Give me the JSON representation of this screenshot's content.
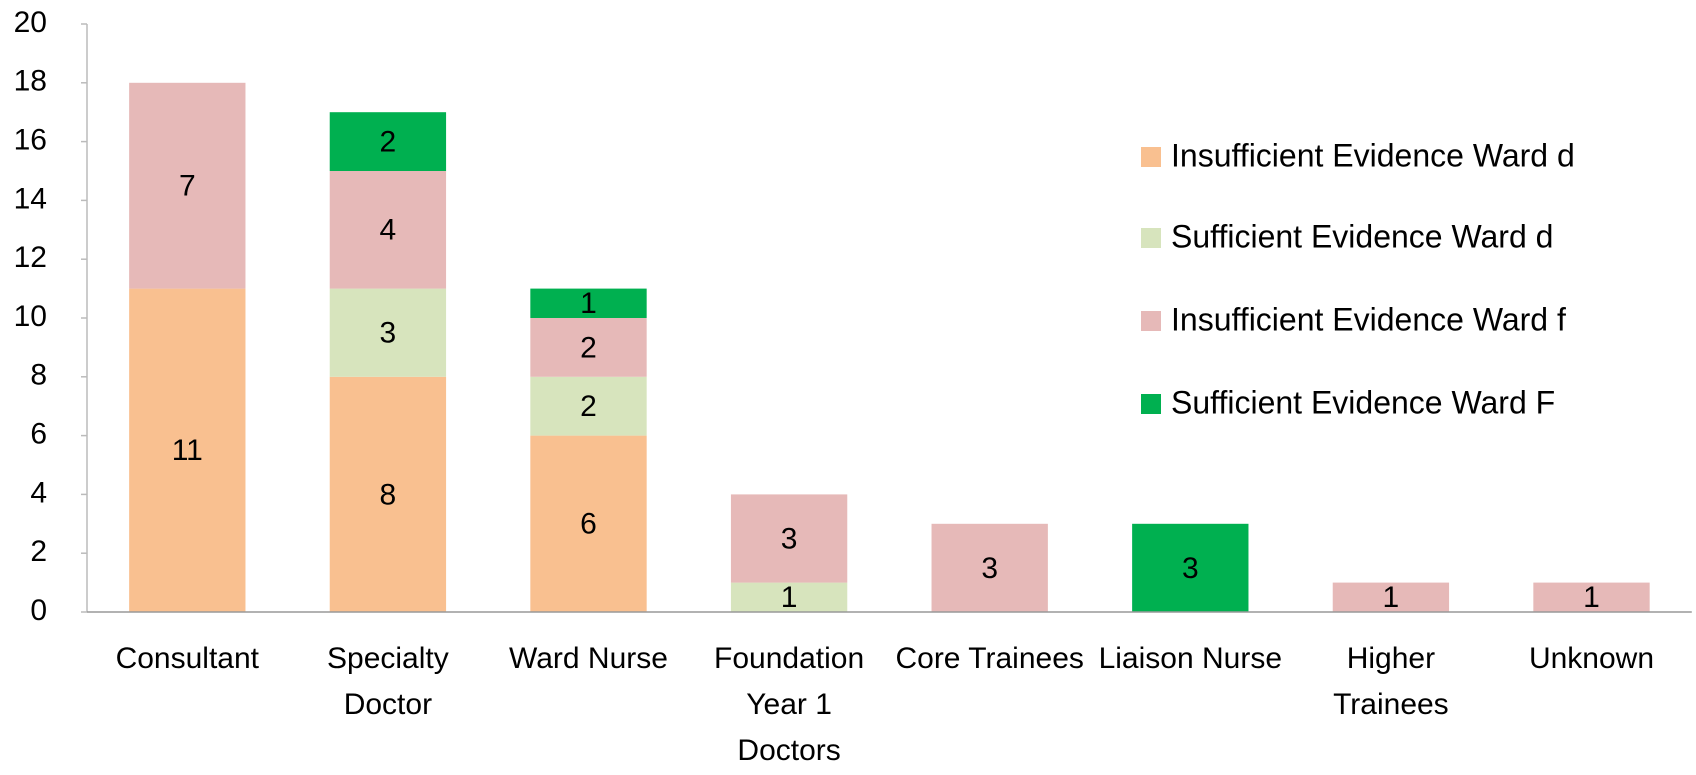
{
  "chart_data": {
    "type": "stacked_bar",
    "categories": [
      "Consultant",
      "Specialty Doctor",
      "Ward Nurse",
      "Foundation Year 1 Doctors",
      "Core Trainees",
      "Liaison Nurse",
      "Higher Trainees",
      "Unknown"
    ],
    "series": [
      {
        "name": "Insufficient Evidence Ward d",
        "color": "#f9c090",
        "values": [
          11,
          8,
          6,
          null,
          null,
          null,
          null,
          null
        ]
      },
      {
        "name": "Sufficient Evidence Ward d",
        "color": "#d7e4bd",
        "values": [
          null,
          3,
          2,
          1,
          null,
          null,
          null,
          null
        ]
      },
      {
        "name": "Insufficient Evidence Ward f",
        "color": "#e6b9b8",
        "values": [
          7,
          4,
          2,
          3,
          3,
          null,
          1,
          1
        ]
      },
      {
        "name": "Sufficient Evidence Ward F",
        "color": "#00b050",
        "values": [
          null,
          2,
          1,
          null,
          null,
          3,
          null,
          null
        ]
      }
    ],
    "ylim": [
      0,
      20
    ],
    "yticks": [
      0,
      2,
      4,
      6,
      8,
      10,
      12,
      14,
      16,
      18,
      20
    ],
    "grid": false,
    "legend": "right"
  }
}
